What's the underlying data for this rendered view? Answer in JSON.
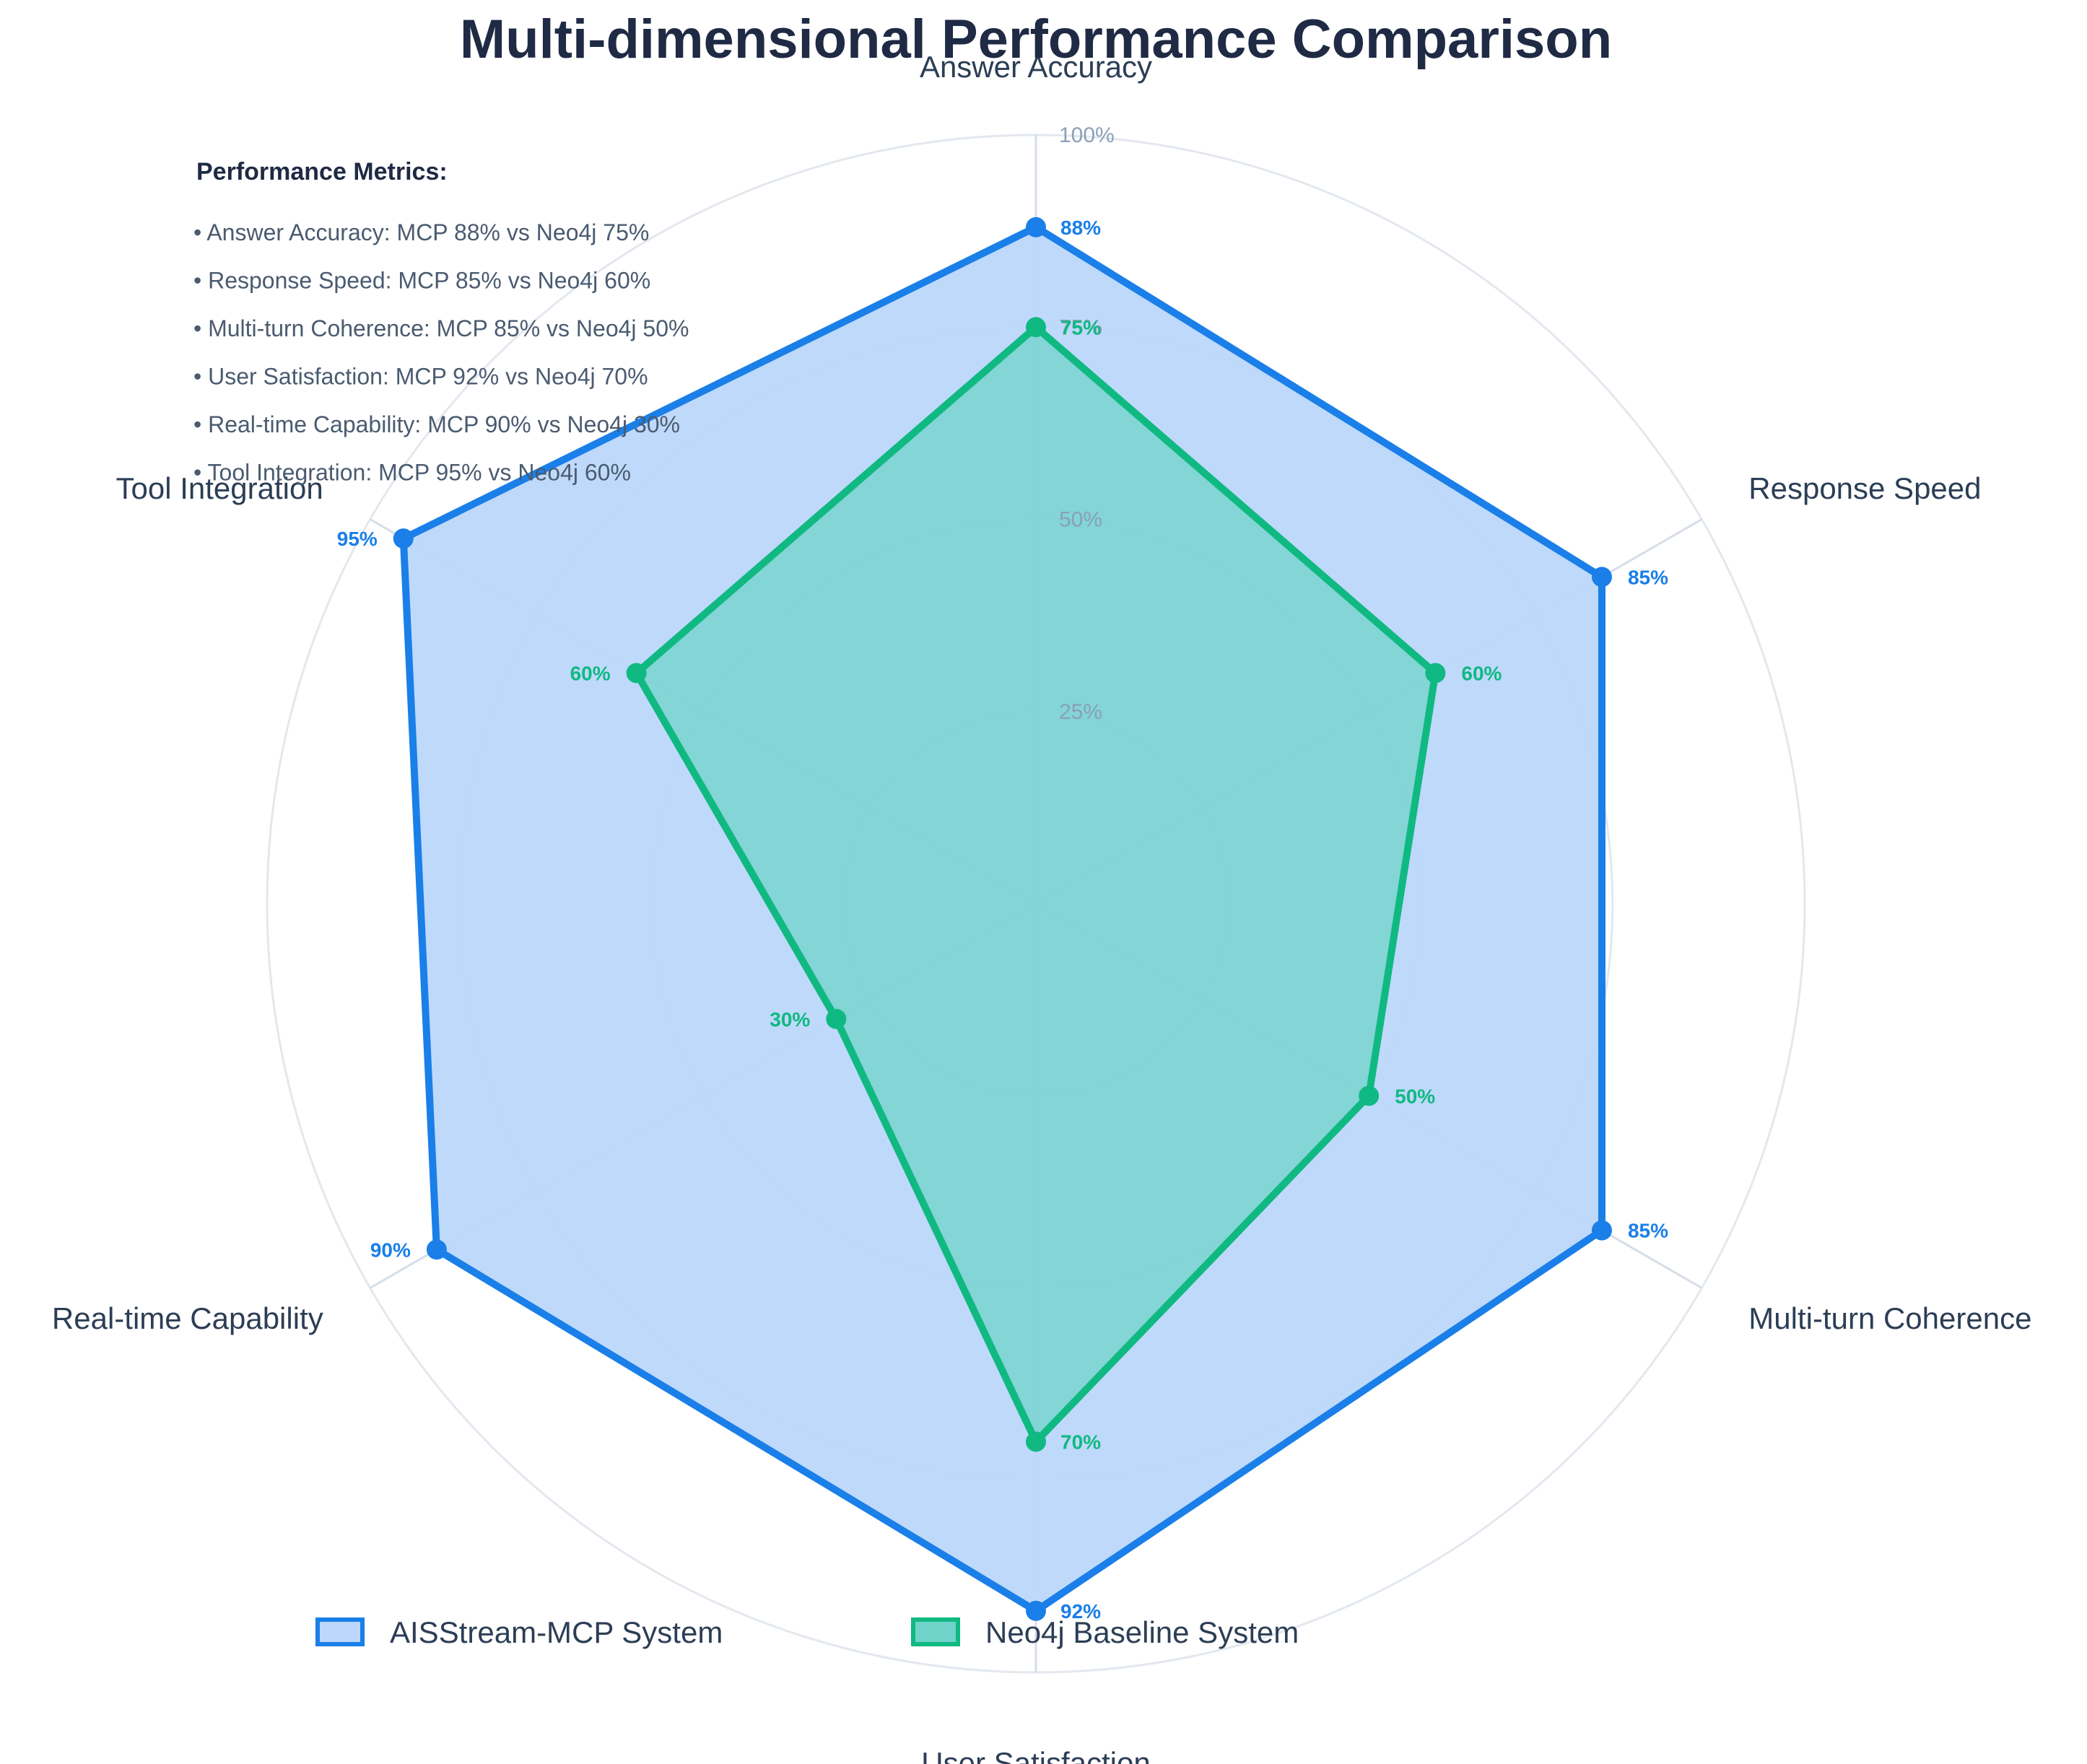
{
  "chart_data": {
    "type": "radar",
    "title": "Multi-dimensional Performance Comparison",
    "axes": [
      "Answer Accuracy",
      "Response Speed",
      "Multi-turn Coherence",
      "User Satisfaction",
      "Real-time Capability",
      "Tool Integration"
    ],
    "rlim": [
      0,
      100
    ],
    "ticks": [
      "25%",
      "50%",
      "75%",
      "100%"
    ],
    "tick_values": [
      25,
      50,
      75,
      100
    ],
    "grid": true,
    "legend_position": "bottom",
    "series": [
      {
        "name": "AISStream-MCP System",
        "values": [
          88,
          85,
          85,
          92,
          90,
          95
        ],
        "labels": [
          "88%",
          "85%",
          "85%",
          "92%",
          "90%",
          "95%"
        ],
        "color": "#1a7fe8",
        "fill": "#bcd7fb"
      },
      {
        "name": "Neo4j Baseline System",
        "values": [
          75,
          60,
          50,
          70,
          30,
          60
        ],
        "labels": [
          "75%",
          "60%",
          "50%",
          "70%",
          "30%",
          "60%"
        ],
        "color": "#10b981",
        "fill": "#6fd3c9"
      }
    ],
    "annotations": {
      "heading": "Performance Metrics:",
      "lines": [
        "• Answer Accuracy: MCP 88% vs Neo4j 75%",
        "• Response Speed: MCP 85% vs Neo4j 60%",
        "• Multi-turn Coherence: MCP 85% vs Neo4j 50%",
        "• User Satisfaction: MCP 92% vs Neo4j 70%",
        "• Real-time Capability: MCP 90% vs Neo4j 30%",
        "• Tool Integration: MCP 95% vs Neo4j 60%"
      ]
    }
  }
}
